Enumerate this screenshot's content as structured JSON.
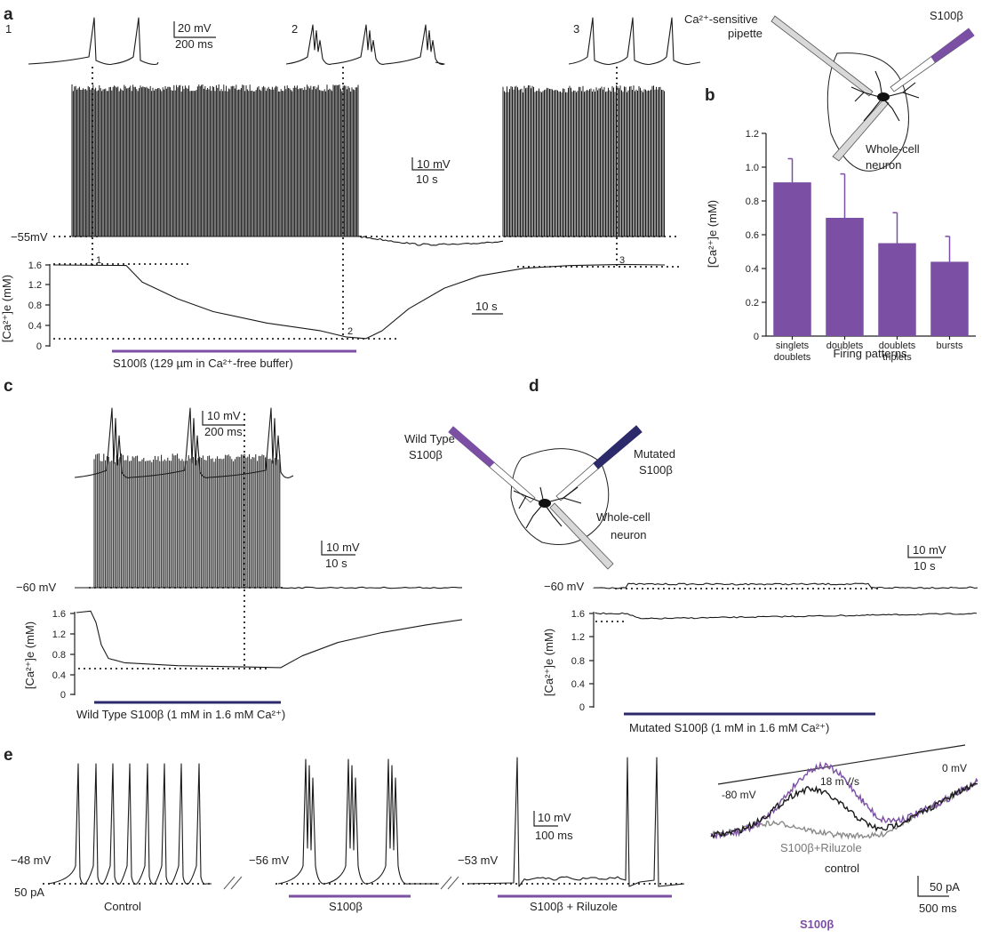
{
  "panels": {
    "a": {
      "label": "a",
      "snippet_labels": [
        "1",
        "2",
        "3"
      ],
      "inset_scale": {
        "v": "20 mV",
        "t": "200 ms"
      },
      "main_scale": {
        "v": "10 mV",
        "t": "10 s"
      },
      "vm_label": "−55mV",
      "ca_ylabel": "[Ca²⁺]e (mM)",
      "ca_ticks": [
        "1.6",
        "1.2",
        "0.8",
        "0.4",
        "0"
      ],
      "ca_markers": [
        "1",
        "2",
        "3"
      ],
      "ca_scale": "10 s",
      "application_label": "S100ß (129 µm in Ca²⁺-free buffer)"
    },
    "schematic_top": {
      "pipette_ca": "Ca²⁺-sensitive",
      "pipette_ca2": "pipette",
      "pipette_s100": "S100β",
      "whole_cell": "Whole-cell",
      "neuron": "neuron"
    },
    "b": {
      "label": "b",
      "xlabel": "Firing patterns",
      "ylabel": "[Ca²⁺]e (mM)"
    },
    "c": {
      "label": "c",
      "inset_scale": {
        "v": "10 mV",
        "t": "200 ms"
      },
      "main_scale": {
        "v": "10 mV",
        "t": "10 s"
      },
      "vm_label": "−60 mV",
      "ca_ylabel": "[Ca²⁺]e (mM)",
      "ca_ticks": [
        "1.6",
        "1.2",
        "0.8",
        "0.4",
        "0"
      ],
      "application_label": "Wild Type S100β (1 mM in 1.6 mM Ca²⁺)",
      "schematic": {
        "wild_type": "Wild Type",
        "wild_type2": "S100β",
        "mutated": "Mutated",
        "mutated2": "S100β",
        "whole_cell": "Whole-cell",
        "neuron": "neuron"
      }
    },
    "d": {
      "label": "d",
      "main_scale": {
        "v": "10 mV",
        "t": "10 s"
      },
      "vm_label": "−60 mV",
      "ca_ylabel": "[Ca²⁺]e (mM)",
      "ca_ticks": [
        "1.6",
        "1.2",
        "0.8",
        "0.4",
        "0"
      ],
      "application_label": "Mutated S100β (1 mM in 1.6 mM Ca²⁺)"
    },
    "e": {
      "label": "e",
      "vm_control": "−48 mV",
      "current": "50 pA",
      "control_label": "Control",
      "vm_s100": "−56 mV",
      "s100_label": "S100β",
      "vm_riluzole": "−53 mV",
      "riluzole_label": "S100β + Riluzole",
      "scale": {
        "v": "10 mV",
        "t": "100 ms"
      },
      "ramp": {
        "start": "-80 mV",
        "end": "0 mV",
        "rate": "18 mV/s",
        "riluzole": "S100β+Riluzole",
        "control": "control",
        "s100": "S100β",
        "scale_i": "50 pA",
        "scale_t": "500 ms"
      }
    }
  },
  "colors": {
    "trace": "#1a1a1a",
    "s100_purple": "#7b4fa3",
    "mutated_navy": "#2c2a6a",
    "riluzole_gray": "#8a8a8a"
  },
  "chart_data": {
    "type": "bar",
    "categories": [
      "singlets doublets",
      "doublets",
      "doublets triplets",
      "bursts"
    ],
    "values": [
      0.91,
      0.7,
      0.55,
      0.44
    ],
    "errors": [
      0.14,
      0.26,
      0.18,
      0.15
    ],
    "xlabel": "Firing patterns",
    "ylabel": "[Ca²⁺]e (mM)",
    "ylim": [
      0,
      1.2
    ],
    "yticks": [
      "0",
      "0.2",
      "0.4",
      "0.6",
      "0.8",
      "1.0",
      "1.2"
    ],
    "bar_color": "#7b4fa3"
  }
}
